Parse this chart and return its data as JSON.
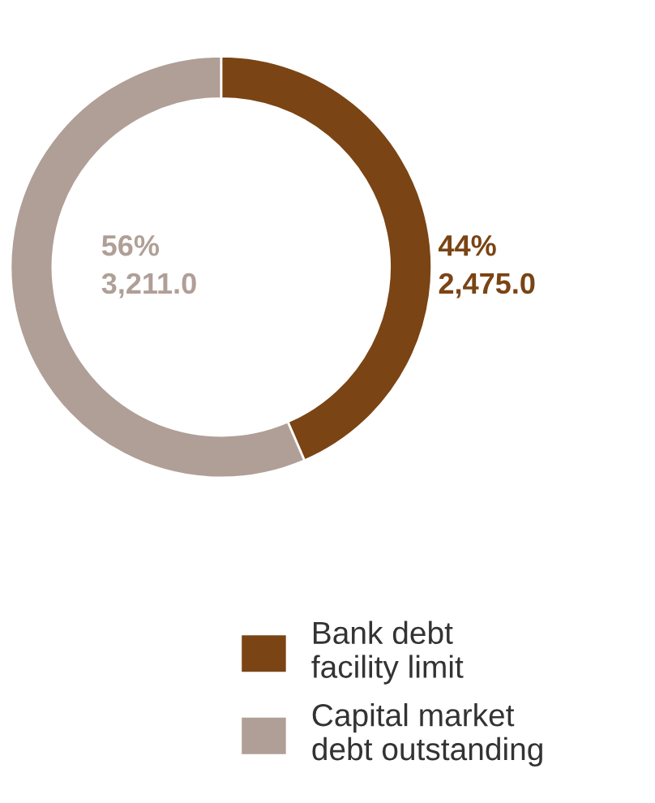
{
  "chart_data": {
    "type": "donut",
    "categories": [
      "Bank debt\nfacility limit",
      "Capital market\ndebt outstanding"
    ],
    "values": [
      2475.0,
      3211.0
    ],
    "colors": [
      "#7a4414",
      "#b09f97"
    ],
    "value_labels": [
      "44%\n2,475.0",
      "56%\n3,211.0"
    ],
    "legend": "bottom"
  }
}
